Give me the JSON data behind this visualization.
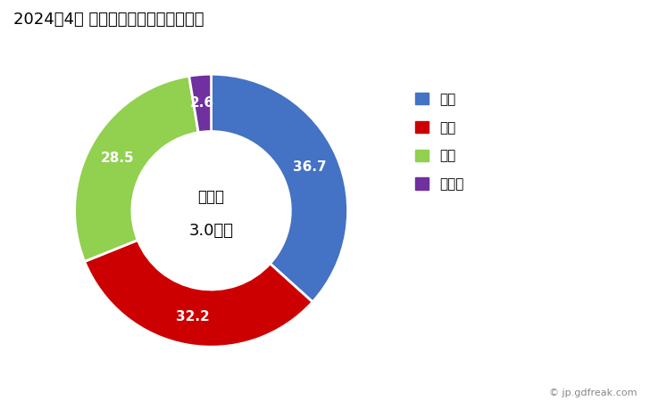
{
  "title": "2024年4月 輸出相手国のシェア（％）",
  "title_fontsize": 13,
  "labels": [
    "香港",
    "米国",
    "中国",
    "その他"
  ],
  "values": [
    36.7,
    32.2,
    28.5,
    2.6
  ],
  "colors": [
    "#4472C4",
    "#CC0000",
    "#92D050",
    "#7030A0"
  ],
  "center_text_line1": "総　額",
  "center_text_line2": "3.0億円",
  "legend_labels": [
    "香港",
    "米国",
    "中国",
    "その他"
  ],
  "donut_width": 0.42,
  "background_color": "#ffffff",
  "watermark": "© jp.gdfreak.com"
}
